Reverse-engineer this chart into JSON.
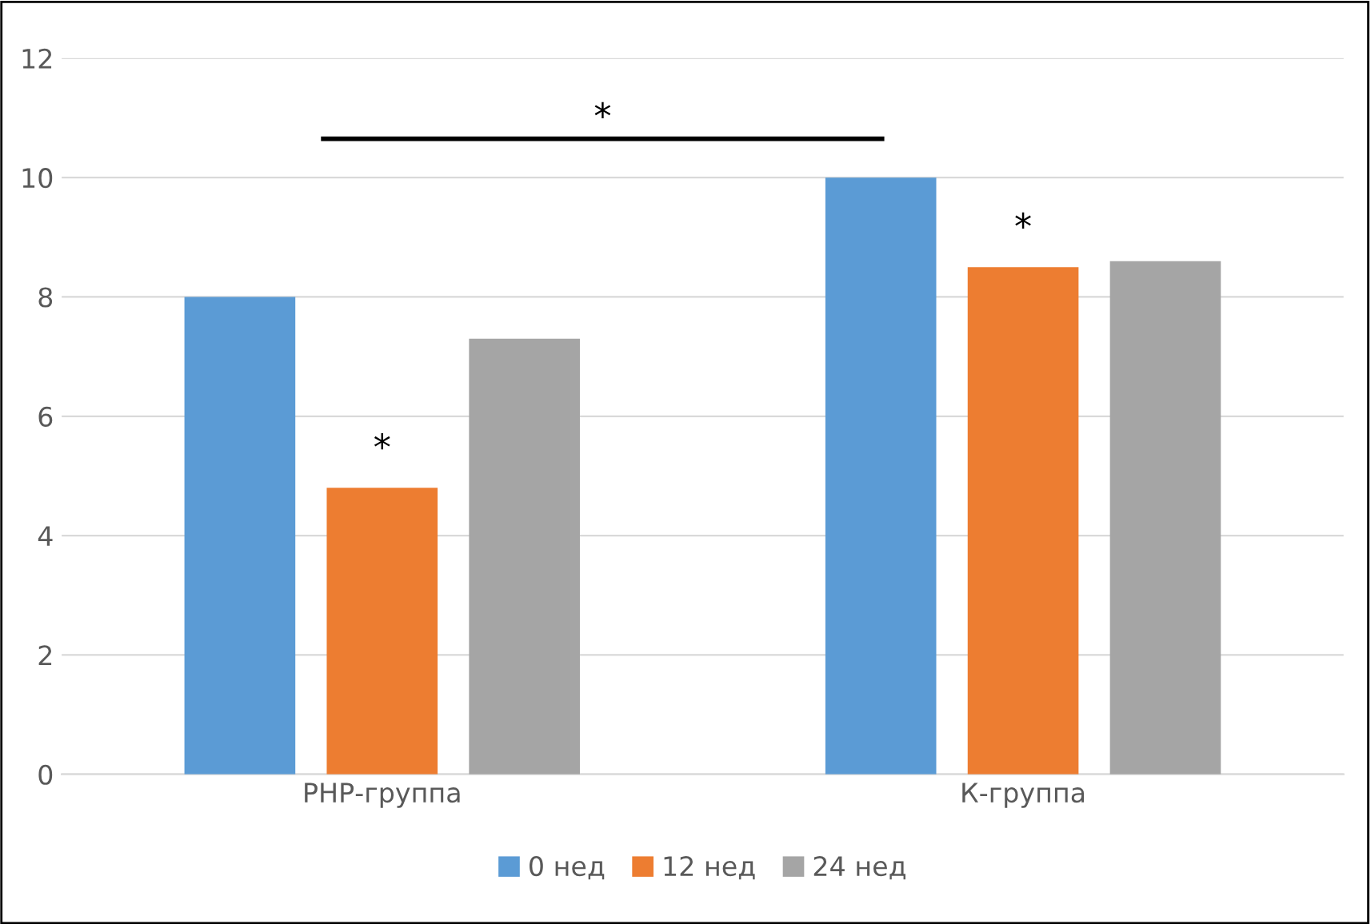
{
  "chart_data": {
    "type": "bar",
    "categories": [
      "РНР-группа",
      "К-группа"
    ],
    "series": [
      {
        "name": "0 нед",
        "color": "#5b9bd5",
        "values": [
          8.0,
          10.0
        ]
      },
      {
        "name": "12 нед",
        "color": "#ed7d31",
        "values": [
          4.8,
          8.5
        ]
      },
      {
        "name": "24 нед",
        "color": "#a5a5a5",
        "values": [
          7.3,
          8.6
        ]
      }
    ],
    "ylim": [
      0,
      12
    ],
    "yticks": [
      0,
      2,
      4,
      6,
      8,
      10,
      12
    ],
    "grid": "y",
    "legend": "bottom",
    "annotations": [
      "*",
      "*",
      "*"
    ]
  }
}
